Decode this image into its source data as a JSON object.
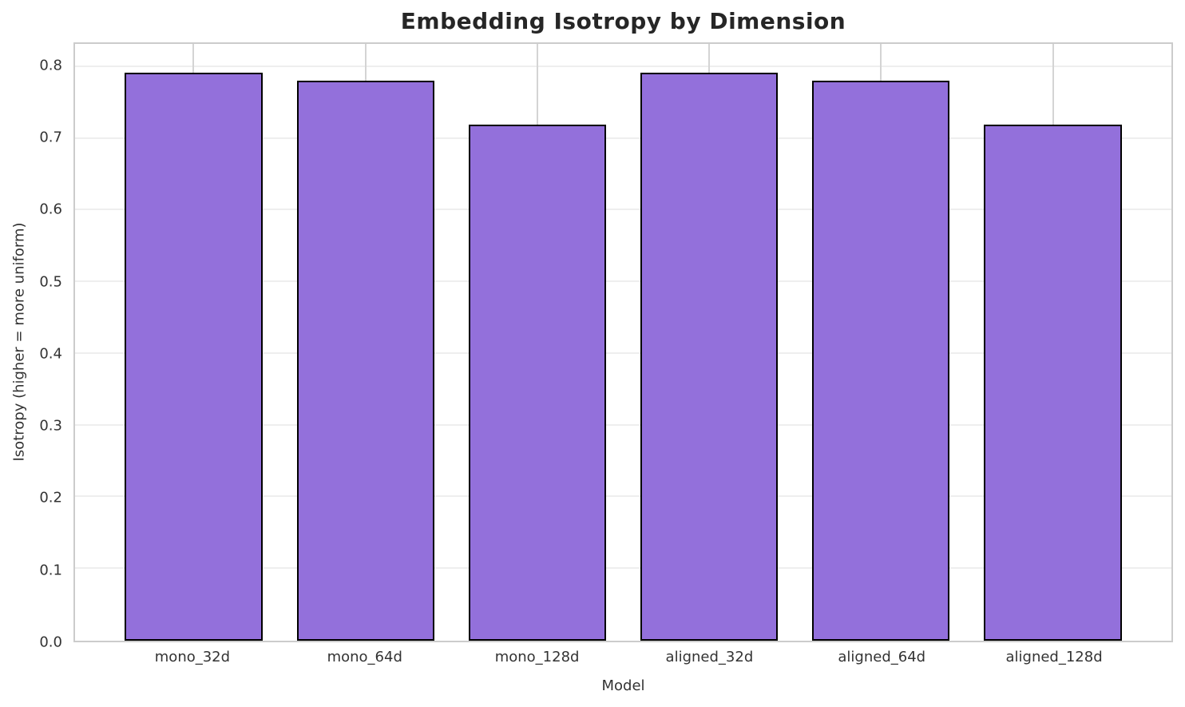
{
  "chart_data": {
    "type": "bar",
    "title": "Embedding Isotropy by Dimension",
    "xlabel": "Model",
    "ylabel": "Isotropy (higher = more uniform)",
    "categories": [
      "mono_32d",
      "mono_64d",
      "mono_128d",
      "aligned_32d",
      "aligned_64d",
      "aligned_128d"
    ],
    "values": [
      0.792,
      0.781,
      0.72,
      0.792,
      0.781,
      0.72
    ],
    "ytick_labels": [
      "0.0",
      "0.1",
      "0.2",
      "0.3",
      "0.4",
      "0.5",
      "0.6",
      "0.7",
      "0.8"
    ],
    "yticks": [
      0.0,
      0.1,
      0.2,
      0.3,
      0.4,
      0.5,
      0.6,
      0.7,
      0.8
    ],
    "ylim": [
      0,
      0.832
    ],
    "xlim": [
      -0.69,
      5.69
    ],
    "bar_width_data_units": 0.8,
    "legend_position": "none",
    "grid": "on",
    "colors": {
      "bar_fill": "#9370DB",
      "bar_edge": "#000000",
      "horizontal_grid": "#eeeeee",
      "vertical_grid": "#d4d4d4",
      "plot_border": "#cccccc",
      "title_text": "#262626",
      "tick_text": "#333333",
      "background": "#ffffff"
    }
  }
}
